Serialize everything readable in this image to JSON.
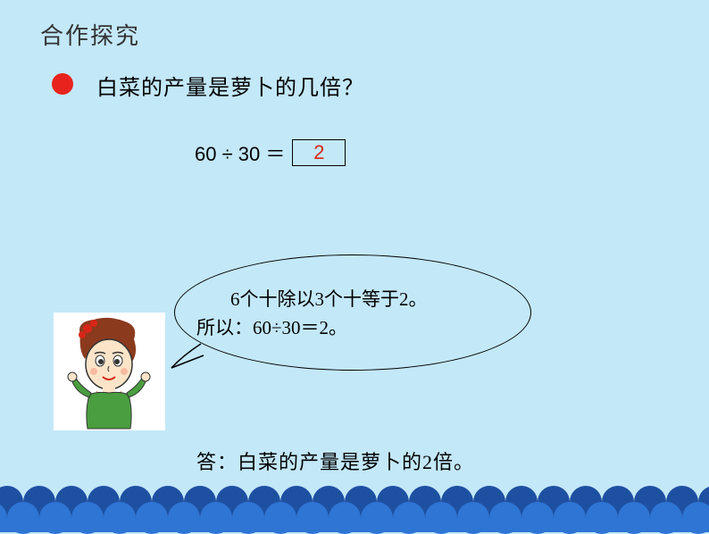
{
  "header": {
    "title": "合作探究"
  },
  "question": {
    "text": "白菜的产量是萝卜的几倍？"
  },
  "equation": {
    "expression": "60 ÷ 30 ＝",
    "answer": "2",
    "answer_color": "#d92518"
  },
  "speech": {
    "line1": "6个十除以3个十等于2。",
    "line2": "所以：60÷30＝2。"
  },
  "conclusion": {
    "text": "答：白菜的产量是萝卜的2倍。"
  },
  "colors": {
    "background": "#c3e8f8",
    "dot": "#e8231d",
    "wave_back": "#1e50a2",
    "wave_front": "#2e75d4"
  },
  "fonts": {
    "main": "KaiTi",
    "header_size": 26,
    "body_size": 22
  }
}
